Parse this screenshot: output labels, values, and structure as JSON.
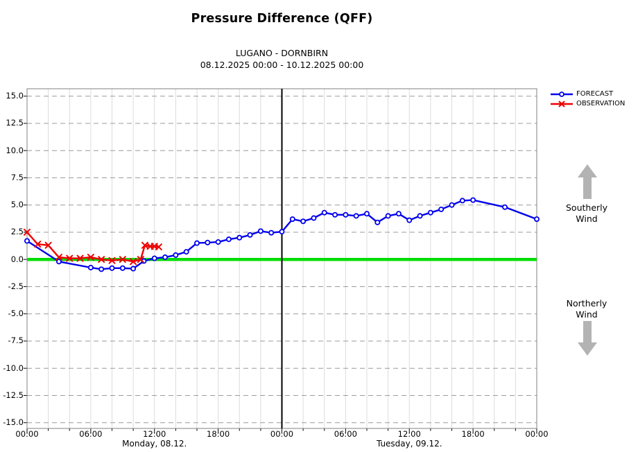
{
  "title": "Pressure Difference (QFF)",
  "subtitle": "LUGANO - DORNBIRN",
  "date_range": "08.12.2025 00:00 - 10.12.2025 00:00",
  "legend": {
    "items": [
      {
        "label": "FORECAST",
        "color": "#0000ee",
        "marker": "circle"
      },
      {
        "label": "OBSERVATION",
        "color": "#ee0000",
        "marker": "x"
      }
    ]
  },
  "annotations": {
    "southerly": {
      "lines": [
        "Southerly",
        "Wind"
      ],
      "arrow": "up"
    },
    "northerly": {
      "lines": [
        "Northerly",
        "Wind"
      ],
      "arrow": "down"
    },
    "arrow_color": "#b3b3b3"
  },
  "chart_data": {
    "type": "line",
    "title": "Pressure Difference (QFF)",
    "station_pair": "LUGANO - DORNBIRN",
    "period": "08.12.2025 00:00 - 10.12.2025 00:00",
    "x_unit": "hours since 08.12.2025 00:00",
    "xlim": [
      0,
      48
    ],
    "ylim": [
      -15.0,
      15.0
    ],
    "y_tick_step": 2.5,
    "y_ticks": [
      15.0,
      12.5,
      10.0,
      7.5,
      5.0,
      2.5,
      0.0,
      -2.5,
      -5.0,
      -7.5,
      -10.0,
      -12.5,
      -15.0
    ],
    "x_ticks": [
      {
        "hour": 0,
        "label": "00:00"
      },
      {
        "hour": 6,
        "label": "06:00"
      },
      {
        "hour": 12,
        "label": "12:00"
      },
      {
        "hour": 18,
        "label": "18:00"
      },
      {
        "hour": 24,
        "label": "00:00"
      },
      {
        "hour": 30,
        "label": "06:00"
      },
      {
        "hour": 36,
        "label": "12:00"
      },
      {
        "hour": 42,
        "label": "18:00"
      },
      {
        "hour": 48,
        "label": "00:00"
      }
    ],
    "day_labels": [
      {
        "hour": 12,
        "label": "Monday, 08.12."
      },
      {
        "hour": 36,
        "label": "Tuesday, 09.12."
      }
    ],
    "grid": {
      "h_style": "dashed",
      "h_color": "#999999",
      "v_every_hours": 2,
      "v_color": "#dcdcdc",
      "border_color": "#808080"
    },
    "zero_line": {
      "value": 0,
      "color": "#00dd00"
    },
    "divider_line": {
      "hour": 24,
      "color": "#000000"
    },
    "series": [
      {
        "name": "FORECAST",
        "color": "#0000ee",
        "marker": "circle",
        "points": [
          [
            0,
            1.7
          ],
          [
            3,
            -0.2
          ],
          [
            6,
            -0.75
          ],
          [
            7,
            -0.9
          ],
          [
            8,
            -0.8
          ],
          [
            9,
            -0.8
          ],
          [
            10,
            -0.85
          ],
          [
            11,
            -0.15
          ],
          [
            12,
            0.1
          ],
          [
            13,
            0.2
          ],
          [
            14,
            0.4
          ],
          [
            15,
            0.7
          ],
          [
            16,
            1.5
          ],
          [
            17,
            1.55
          ],
          [
            18,
            1.6
          ],
          [
            19,
            1.85
          ],
          [
            20,
            2.0
          ],
          [
            21,
            2.25
          ],
          [
            22,
            2.6
          ],
          [
            23,
            2.45
          ],
          [
            24,
            2.55
          ],
          [
            25,
            3.7
          ],
          [
            26,
            3.5
          ],
          [
            27,
            3.8
          ],
          [
            28,
            4.3
          ],
          [
            29,
            4.1
          ],
          [
            30,
            4.1
          ],
          [
            31,
            4.0
          ],
          [
            32,
            4.2
          ],
          [
            33,
            3.4
          ],
          [
            34,
            4.0
          ],
          [
            35,
            4.2
          ],
          [
            36,
            3.6
          ],
          [
            37,
            4.0
          ],
          [
            38,
            4.3
          ],
          [
            39,
            4.6
          ],
          [
            40,
            5.0
          ],
          [
            41,
            5.4
          ],
          [
            42,
            5.45
          ],
          [
            45,
            4.8
          ],
          [
            48,
            3.7
          ]
        ]
      },
      {
        "name": "OBSERVATION",
        "color": "#ee0000",
        "marker": "x",
        "points": [
          [
            0,
            2.5
          ],
          [
            1,
            1.4
          ],
          [
            2,
            1.3
          ],
          [
            3,
            0.2
          ],
          [
            4,
            0.1
          ],
          [
            5,
            0.1
          ],
          [
            6,
            0.2
          ],
          [
            7,
            0.0
          ],
          [
            8,
            -0.1
          ],
          [
            9,
            0.0
          ],
          [
            10,
            -0.2
          ],
          [
            10.7,
            0.0
          ],
          [
            11.1,
            1.3
          ],
          [
            11.6,
            1.2
          ],
          [
            12,
            1.2
          ],
          [
            12.4,
            1.15
          ]
        ]
      }
    ]
  }
}
